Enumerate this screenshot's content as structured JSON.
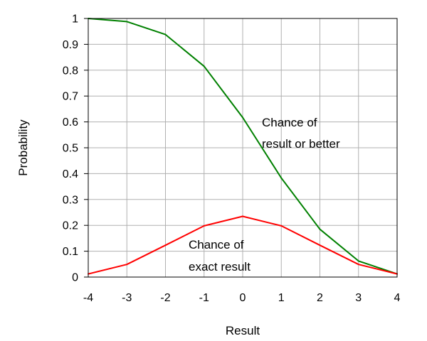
{
  "chart_data": {
    "type": "line",
    "title": "",
    "xlabel": "Result",
    "ylabel": "Probability",
    "x": [
      -4,
      -3,
      -2,
      -1,
      0,
      1,
      2,
      3,
      4
    ],
    "xlim": [
      -4,
      4
    ],
    "ylim": [
      0,
      1
    ],
    "xticks": [
      "-4",
      "-3",
      "-2",
      "-1",
      "0",
      "1",
      "2",
      "3",
      "4"
    ],
    "yticks": [
      "0",
      "0.1",
      "0.2",
      "0.3",
      "0.4",
      "0.5",
      "0.6",
      "0.7",
      "0.8",
      "0.9",
      "1"
    ],
    "grid": true,
    "legend": "none",
    "series": [
      {
        "key": "cumulative",
        "color": "#008000",
        "values": [
          1.0,
          0.988,
          0.938,
          0.815,
          0.617,
          0.383,
          0.185,
          0.062,
          0.012
        ]
      },
      {
        "key": "exact",
        "color": "#ff0000",
        "values": [
          0.012,
          0.049,
          0.123,
          0.198,
          0.235,
          0.198,
          0.123,
          0.049,
          0.012
        ]
      }
    ],
    "annotations": {
      "cumulative": [
        "Chance of",
        "result or better"
      ],
      "exact": [
        "Chance of",
        "exact result"
      ]
    }
  }
}
